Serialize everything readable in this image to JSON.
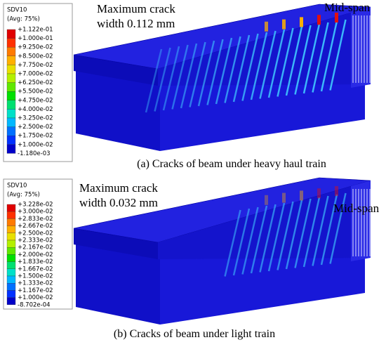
{
  "panels": [
    {
      "legend": {
        "title": "SDV10",
        "subtitle": "(Avg: 75%)",
        "labels": [
          "+1.122e-01",
          "+1.000e-01",
          "+9.250e-02",
          "+8.500e-02",
          "+7.750e-02",
          "+7.000e-02",
          "+6.250e-02",
          "+5.500e-02",
          "+4.750e-02",
          "+4.000e-02",
          "+3.250e-02",
          "+2.500e-02",
          "+1.750e-02",
          "+1.000e-02",
          "-1.180e-03"
        ]
      },
      "annotation": [
        "Maximum crack",
        "width 0.112 mm"
      ],
      "midspan": "Mid-span",
      "caption": "(a) Cracks of beam under heavy haul train"
    },
    {
      "legend": {
        "title": "SDV10",
        "subtitle": "(Avg: 75%)",
        "labels": [
          "+3.228e-02",
          "+3.000e-02",
          "+2.833e-02",
          "+2.667e-02",
          "+2.500e-02",
          "+2.333e-02",
          "+2.167e-02",
          "+2.000e-02",
          "+1.833e-02",
          "+1.667e-02",
          "+1.500e-02",
          "+1.333e-02",
          "+1.167e-02",
          "+1.000e-02",
          "-8.702e-04"
        ]
      },
      "annotation": [
        "Maximum crack",
        "width 0.032 mm"
      ],
      "midspan": "Mid-span",
      "caption": "(b) Cracks of beam under light train"
    }
  ]
}
